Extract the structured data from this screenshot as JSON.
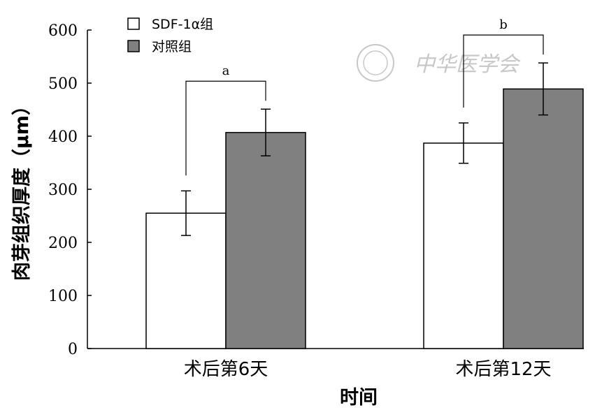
{
  "chart_data": {
    "type": "bar",
    "categories": [
      "术后第6天",
      "术后第12天"
    ],
    "series": [
      {
        "name": "SDF-1α组",
        "values": [
          255,
          387
        ],
        "errors": [
          42,
          38
        ],
        "color": "#ffffff"
      },
      {
        "name": "对照组",
        "values": [
          407,
          489
        ],
        "errors": [
          44,
          49
        ],
        "color": "#808080"
      }
    ],
    "title": "",
    "xlabel": "时间",
    "ylabel": "肉芽组织厚度（μm）",
    "ylim": [
      0,
      600
    ],
    "yticks": [
      "0",
      "100",
      "200",
      "300",
      "400",
      "500",
      "600"
    ],
    "grid": false,
    "legend_position": "top-left",
    "significance": [
      {
        "category_index": 0,
        "label": "a"
      },
      {
        "category_index": 1,
        "label": "b"
      }
    ]
  },
  "watermark": {
    "text": "中华医学会"
  }
}
